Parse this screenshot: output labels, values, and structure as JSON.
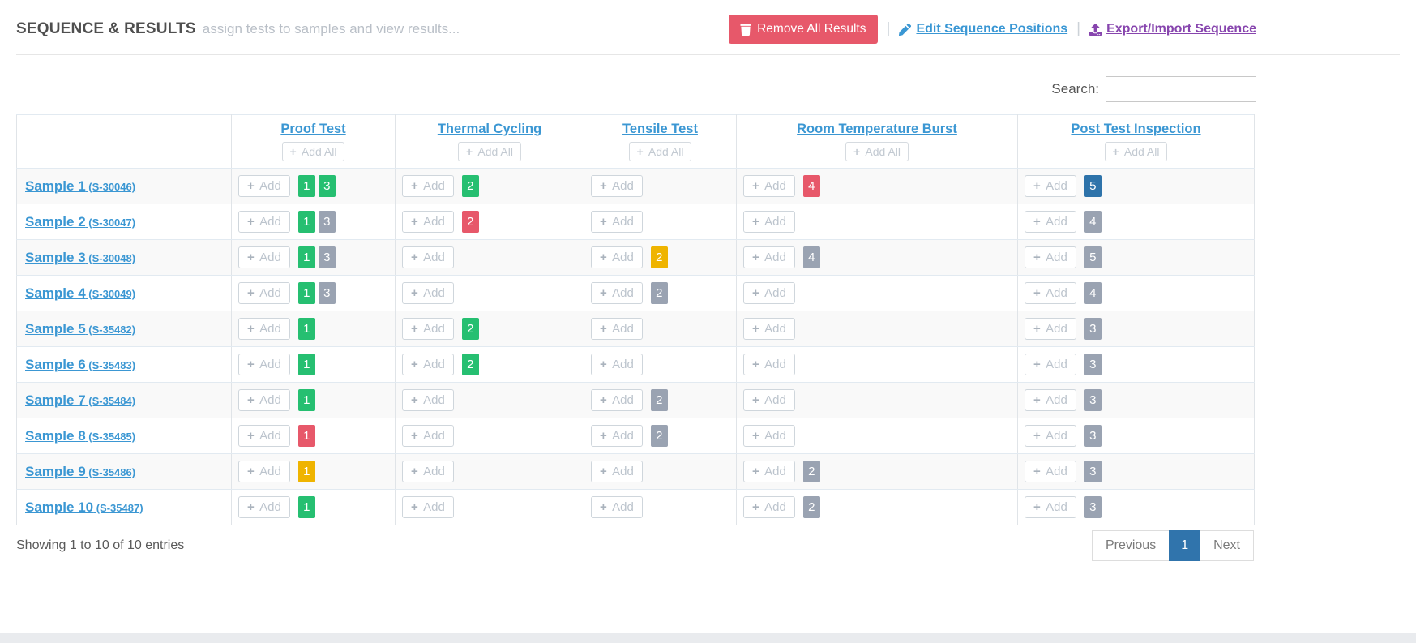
{
  "header": {
    "title": "SEQUENCE & RESULTS",
    "subtitle": "assign tests to samples and view results...",
    "separator": "|",
    "remove_all_label": "Remove All Results",
    "edit_sequence_label": "Edit Sequence Positions",
    "export_import_label": "Export/Import Sequence"
  },
  "icons": {
    "remove": "trash-icon",
    "edit": "pencil-icon",
    "export": "upload-icon",
    "add": "plus-icon",
    "plus_glyph": "+"
  },
  "search": {
    "label": "Search:",
    "value": ""
  },
  "table": {
    "add_label": "Add",
    "columns": [
      {
        "label": "Proof Test",
        "add_all_label": "Add All"
      },
      {
        "label": "Thermal Cycling",
        "add_all_label": "Add All"
      },
      {
        "label": "Tensile Test",
        "add_all_label": "Add All"
      },
      {
        "label": "Room Temperature Burst",
        "add_all_label": "Add All"
      },
      {
        "label": "Post Test Inspection",
        "add_all_label": "Add All"
      }
    ],
    "rows": [
      {
        "name": "Sample 1",
        "id": "(S-30046)",
        "cells": [
          {
            "badges": [
              {
                "value": "1",
                "color": "green"
              },
              {
                "value": "3",
                "color": "green"
              }
            ]
          },
          {
            "badges": [
              {
                "value": "2",
                "color": "green"
              }
            ]
          },
          {
            "badges": []
          },
          {
            "badges": [
              {
                "value": "4",
                "color": "red"
              }
            ]
          },
          {
            "badges": [
              {
                "value": "5",
                "color": "blue"
              }
            ]
          }
        ]
      },
      {
        "name": "Sample 2",
        "id": "(S-30047)",
        "cells": [
          {
            "badges": [
              {
                "value": "1",
                "color": "green"
              },
              {
                "value": "3",
                "color": "gray"
              }
            ]
          },
          {
            "badges": [
              {
                "value": "2",
                "color": "red"
              }
            ]
          },
          {
            "badges": []
          },
          {
            "badges": []
          },
          {
            "badges": [
              {
                "value": "4",
                "color": "gray"
              }
            ]
          }
        ]
      },
      {
        "name": "Sample 3",
        "id": "(S-30048)",
        "cells": [
          {
            "badges": [
              {
                "value": "1",
                "color": "green"
              },
              {
                "value": "3",
                "color": "gray"
              }
            ]
          },
          {
            "badges": []
          },
          {
            "badges": [
              {
                "value": "2",
                "color": "yellow"
              }
            ]
          },
          {
            "badges": [
              {
                "value": "4",
                "color": "gray"
              }
            ]
          },
          {
            "badges": [
              {
                "value": "5",
                "color": "gray"
              }
            ]
          }
        ]
      },
      {
        "name": "Sample 4",
        "id": "(S-30049)",
        "cells": [
          {
            "badges": [
              {
                "value": "1",
                "color": "green"
              },
              {
                "value": "3",
                "color": "gray"
              }
            ]
          },
          {
            "badges": []
          },
          {
            "badges": [
              {
                "value": "2",
                "color": "gray"
              }
            ]
          },
          {
            "badges": []
          },
          {
            "badges": [
              {
                "value": "4",
                "color": "gray"
              }
            ]
          }
        ]
      },
      {
        "name": "Sample 5",
        "id": "(S-35482)",
        "cells": [
          {
            "badges": [
              {
                "value": "1",
                "color": "green"
              }
            ]
          },
          {
            "badges": [
              {
                "value": "2",
                "color": "green"
              }
            ]
          },
          {
            "badges": []
          },
          {
            "badges": []
          },
          {
            "badges": [
              {
                "value": "3",
                "color": "gray"
              }
            ]
          }
        ]
      },
      {
        "name": "Sample 6",
        "id": "(S-35483)",
        "cells": [
          {
            "badges": [
              {
                "value": "1",
                "color": "green"
              }
            ]
          },
          {
            "badges": [
              {
                "value": "2",
                "color": "green"
              }
            ]
          },
          {
            "badges": []
          },
          {
            "badges": []
          },
          {
            "badges": [
              {
                "value": "3",
                "color": "gray"
              }
            ]
          }
        ]
      },
      {
        "name": "Sample 7",
        "id": "(S-35484)",
        "cells": [
          {
            "badges": [
              {
                "value": "1",
                "color": "green"
              }
            ]
          },
          {
            "badges": []
          },
          {
            "badges": [
              {
                "value": "2",
                "color": "gray"
              }
            ]
          },
          {
            "badges": []
          },
          {
            "badges": [
              {
                "value": "3",
                "color": "gray"
              }
            ]
          }
        ]
      },
      {
        "name": "Sample 8",
        "id": "(S-35485)",
        "cells": [
          {
            "badges": [
              {
                "value": "1",
                "color": "red"
              }
            ]
          },
          {
            "badges": []
          },
          {
            "badges": [
              {
                "value": "2",
                "color": "gray"
              }
            ]
          },
          {
            "badges": []
          },
          {
            "badges": [
              {
                "value": "3",
                "color": "gray"
              }
            ]
          }
        ]
      },
      {
        "name": "Sample 9",
        "id": "(S-35486)",
        "cells": [
          {
            "badges": [
              {
                "value": "1",
                "color": "yellow"
              }
            ]
          },
          {
            "badges": []
          },
          {
            "badges": []
          },
          {
            "badges": [
              {
                "value": "2",
                "color": "gray"
              }
            ]
          },
          {
            "badges": [
              {
                "value": "3",
                "color": "gray"
              }
            ]
          }
        ]
      },
      {
        "name": "Sample 10",
        "id": "(S-35487)",
        "cells": [
          {
            "badges": [
              {
                "value": "1",
                "color": "green"
              }
            ]
          },
          {
            "badges": []
          },
          {
            "badges": []
          },
          {
            "badges": [
              {
                "value": "2",
                "color": "gray"
              }
            ]
          },
          {
            "badges": [
              {
                "value": "3",
                "color": "gray"
              }
            ]
          }
        ]
      }
    ]
  },
  "footer": {
    "showing_text": "Showing 1 to 10 of 10 entries",
    "previous_label": "Previous",
    "page": "1",
    "next_label": "Next"
  },
  "colors": {
    "badge_green": "#26bf71",
    "badge_red": "#e7586a",
    "badge_yellow": "#efb400",
    "badge_gray": "#9aa3b2",
    "badge_blue": "#2e73aa",
    "danger_button": "#e7586a",
    "link_blue": "#3b97d3",
    "link_purple": "#8745ae",
    "pagination_active": "#3074ac"
  }
}
